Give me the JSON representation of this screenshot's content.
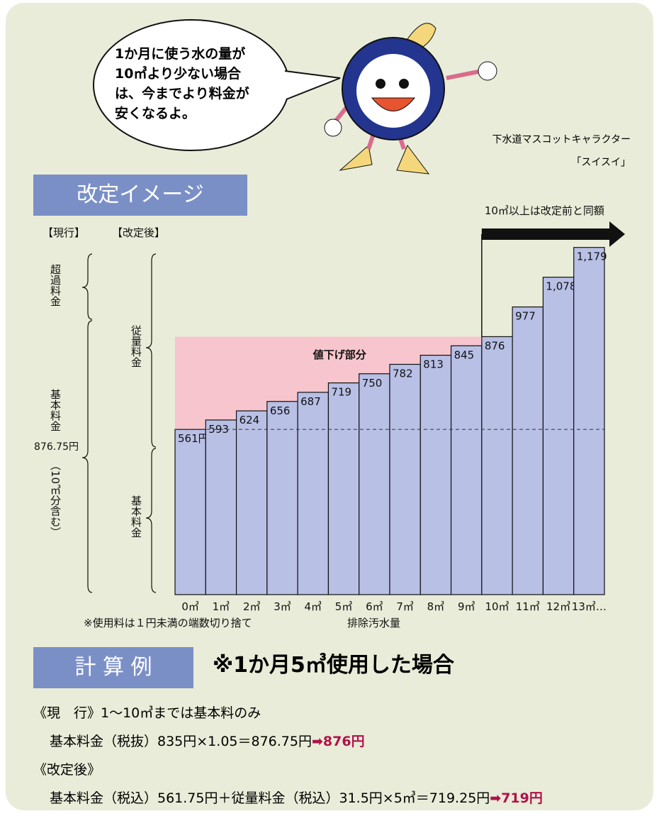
{
  "speech_bubble": {
    "lines": [
      "1か月に使う水の量が",
      "10㎥より少ない場合",
      "は、今までより料金が",
      "安くなるよ。"
    ]
  },
  "mascot": {
    "caption": "下水道マスコットキャラクター",
    "name": "「スイスイ」"
  },
  "section_image": {
    "title": "改定イメージ"
  },
  "chart_data": {
    "type": "bar",
    "categories": [
      "0㎥",
      "1㎥",
      "2㎥",
      "3㎥",
      "4㎥",
      "5㎥",
      "6㎥",
      "7㎥",
      "8㎥",
      "9㎥",
      "10㎥",
      "11㎥",
      "12㎥",
      "13㎥…"
    ],
    "values": [
      561,
      593,
      624,
      656,
      687,
      719,
      750,
      782,
      813,
      845,
      876,
      977,
      1078,
      1179
    ],
    "value_labels": [
      "561円",
      "593",
      "624",
      "656",
      "687",
      "719",
      "750",
      "782",
      "813",
      "845",
      "876",
      "977",
      "1,078",
      "1,179"
    ],
    "color": "#b9c0e6",
    "highlight_color": "#f7c5cd",
    "ylim": [
      0,
      1200
    ],
    "x_label": "排除汚水量",
    "note": "※使用料は１円未満の端数切り捨て",
    "annotations": {
      "reduction": "値下げ部分",
      "same_above": "10㎥以上は改定前と同額",
      "current": "【現行】",
      "revised": "【改定後】",
      "excess": "超過料金",
      "basic_current": "基本料金",
      "basic_current_amount": "876.75円",
      "basic_current_note": "（10㎥分含む）",
      "volume_fee": "従量料金",
      "basic_revised": "基本料金"
    }
  },
  "calculation": {
    "title": "計 算 例",
    "subtitle": "※1か月5㎥使用した場合",
    "current_heading": "《現　行》1～10㎥までは基本料のみ",
    "current_formula": "基本料金（税抜）835円×1.05＝876.75円",
    "current_result": "➡876円",
    "revised_heading": "《改定後》",
    "revised_formula": "基本料金（税込）561.75円＋従量料金（税込）31.5円×5㎥＝719.25円",
    "revised_result": "➡719円"
  }
}
